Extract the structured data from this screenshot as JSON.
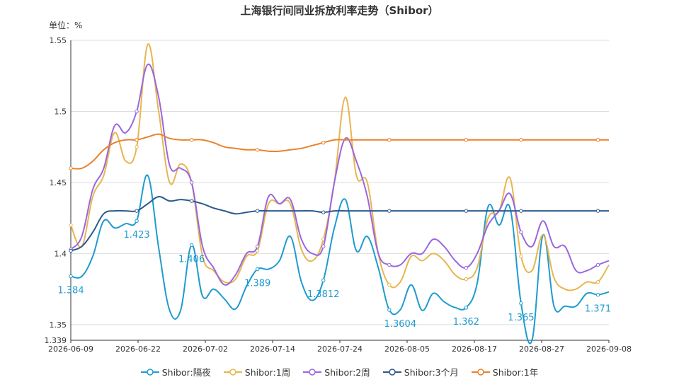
{
  "chart_data": {
    "type": "line",
    "title": "上海银行间同业拆放利率走势（Shibor）",
    "unit_label": "单位：%",
    "xlabel": "",
    "ylabel": "",
    "ylim": [
      1.339,
      1.55
    ],
    "y_ticks": [
      "1.339",
      "1.35",
      "1.4",
      "1.45",
      "1.5",
      "1.55"
    ],
    "x_ticks": [
      "2026-06-09",
      "2026-06-22",
      "2026-07-02",
      "2026-07-14",
      "2026-07-24",
      "2026-08-05",
      "2026-08-17",
      "2026-08-27",
      "2026-09-08"
    ],
    "grid": true,
    "legend_position": "bottom",
    "series": [
      {
        "name": "Shibor:隔夜",
        "color": "#1f9bcf",
        "values": [
          1.384,
          1.384,
          1.398,
          1.423,
          1.418,
          1.421,
          1.423,
          1.455,
          1.404,
          1.36,
          1.36,
          1.406,
          1.37,
          1.375,
          1.368,
          1.361,
          1.377,
          1.389,
          1.389,
          1.395,
          1.412,
          1.38,
          1.367,
          1.3812,
          1.418,
          1.438,
          1.402,
          1.412,
          1.39,
          1.3604,
          1.3604,
          1.378,
          1.36,
          1.372,
          1.366,
          1.362,
          1.362,
          1.379,
          1.433,
          1.42,
          1.432,
          1.365,
          1.339,
          1.413,
          1.363,
          1.363,
          1.363,
          1.372,
          1.371,
          1.373
        ],
        "data_labels": [
          {
            "index": 0,
            "text": "1.384"
          },
          {
            "index": 6,
            "text": "1.423"
          },
          {
            "index": 11,
            "text": "1.406"
          },
          {
            "index": 17,
            "text": "1.389"
          },
          {
            "index": 23,
            "text": "1.3812"
          },
          {
            "index": 30,
            "text": "1.3604"
          },
          {
            "index": 36,
            "text": "1.362"
          },
          {
            "index": 41,
            "text": "1.365"
          },
          {
            "index": 48,
            "text": "1.371"
          }
        ]
      },
      {
        "name": "Shibor:1周",
        "color": "#e8b54f",
        "values": [
          1.42,
          1.405,
          1.44,
          1.455,
          1.485,
          1.465,
          1.475,
          1.547,
          1.5,
          1.45,
          1.463,
          1.45,
          1.398,
          1.388,
          1.38,
          1.382,
          1.398,
          1.402,
          1.435,
          1.435,
          1.435,
          1.403,
          1.395,
          1.41,
          1.45,
          1.51,
          1.455,
          1.45,
          1.4,
          1.378,
          1.38,
          1.398,
          1.395,
          1.4,
          1.395,
          1.385,
          1.382,
          1.39,
          1.425,
          1.43,
          1.453,
          1.398,
          1.388,
          1.413,
          1.383,
          1.375,
          1.375,
          1.38,
          1.38,
          1.392
        ]
      },
      {
        "name": "Shibor:2周",
        "color": "#9966e0",
        "values": [
          1.403,
          1.412,
          1.445,
          1.46,
          1.49,
          1.485,
          1.5,
          1.533,
          1.51,
          1.462,
          1.46,
          1.45,
          1.405,
          1.39,
          1.378,
          1.385,
          1.4,
          1.405,
          1.44,
          1.435,
          1.438,
          1.41,
          1.4,
          1.405,
          1.45,
          1.481,
          1.465,
          1.44,
          1.4,
          1.392,
          1.392,
          1.4,
          1.4,
          1.41,
          1.405,
          1.395,
          1.39,
          1.4,
          1.42,
          1.43,
          1.442,
          1.415,
          1.405,
          1.423,
          1.405,
          1.405,
          1.388,
          1.388,
          1.392,
          1.395
        ]
      },
      {
        "name": "Shibor:3个月",
        "color": "#2b5a8c",
        "values": [
          1.402,
          1.405,
          1.415,
          1.428,
          1.43,
          1.43,
          1.43,
          1.435,
          1.44,
          1.437,
          1.438,
          1.437,
          1.435,
          1.432,
          1.43,
          1.428,
          1.429,
          1.43,
          1.43,
          1.43,
          1.43,
          1.43,
          1.43,
          1.429,
          1.43,
          1.43,
          1.43,
          1.43,
          1.43,
          1.43,
          1.43,
          1.43,
          1.43,
          1.43,
          1.43,
          1.43,
          1.43,
          1.43,
          1.43,
          1.43,
          1.43,
          1.43,
          1.43,
          1.43,
          1.43,
          1.43,
          1.43,
          1.43,
          1.43,
          1.43
        ]
      },
      {
        "name": "Shibor:1年",
        "color": "#e8822e",
        "values": [
          1.46,
          1.46,
          1.465,
          1.473,
          1.478,
          1.48,
          1.48,
          1.482,
          1.484,
          1.481,
          1.48,
          1.48,
          1.48,
          1.478,
          1.475,
          1.474,
          1.473,
          1.473,
          1.472,
          1.472,
          1.473,
          1.474,
          1.476,
          1.478,
          1.48,
          1.48,
          1.48,
          1.48,
          1.48,
          1.48,
          1.48,
          1.48,
          1.48,
          1.48,
          1.48,
          1.48,
          1.48,
          1.48,
          1.48,
          1.48,
          1.48,
          1.48,
          1.48,
          1.48,
          1.48,
          1.48,
          1.48,
          1.48,
          1.48,
          1.48
        ]
      }
    ]
  }
}
